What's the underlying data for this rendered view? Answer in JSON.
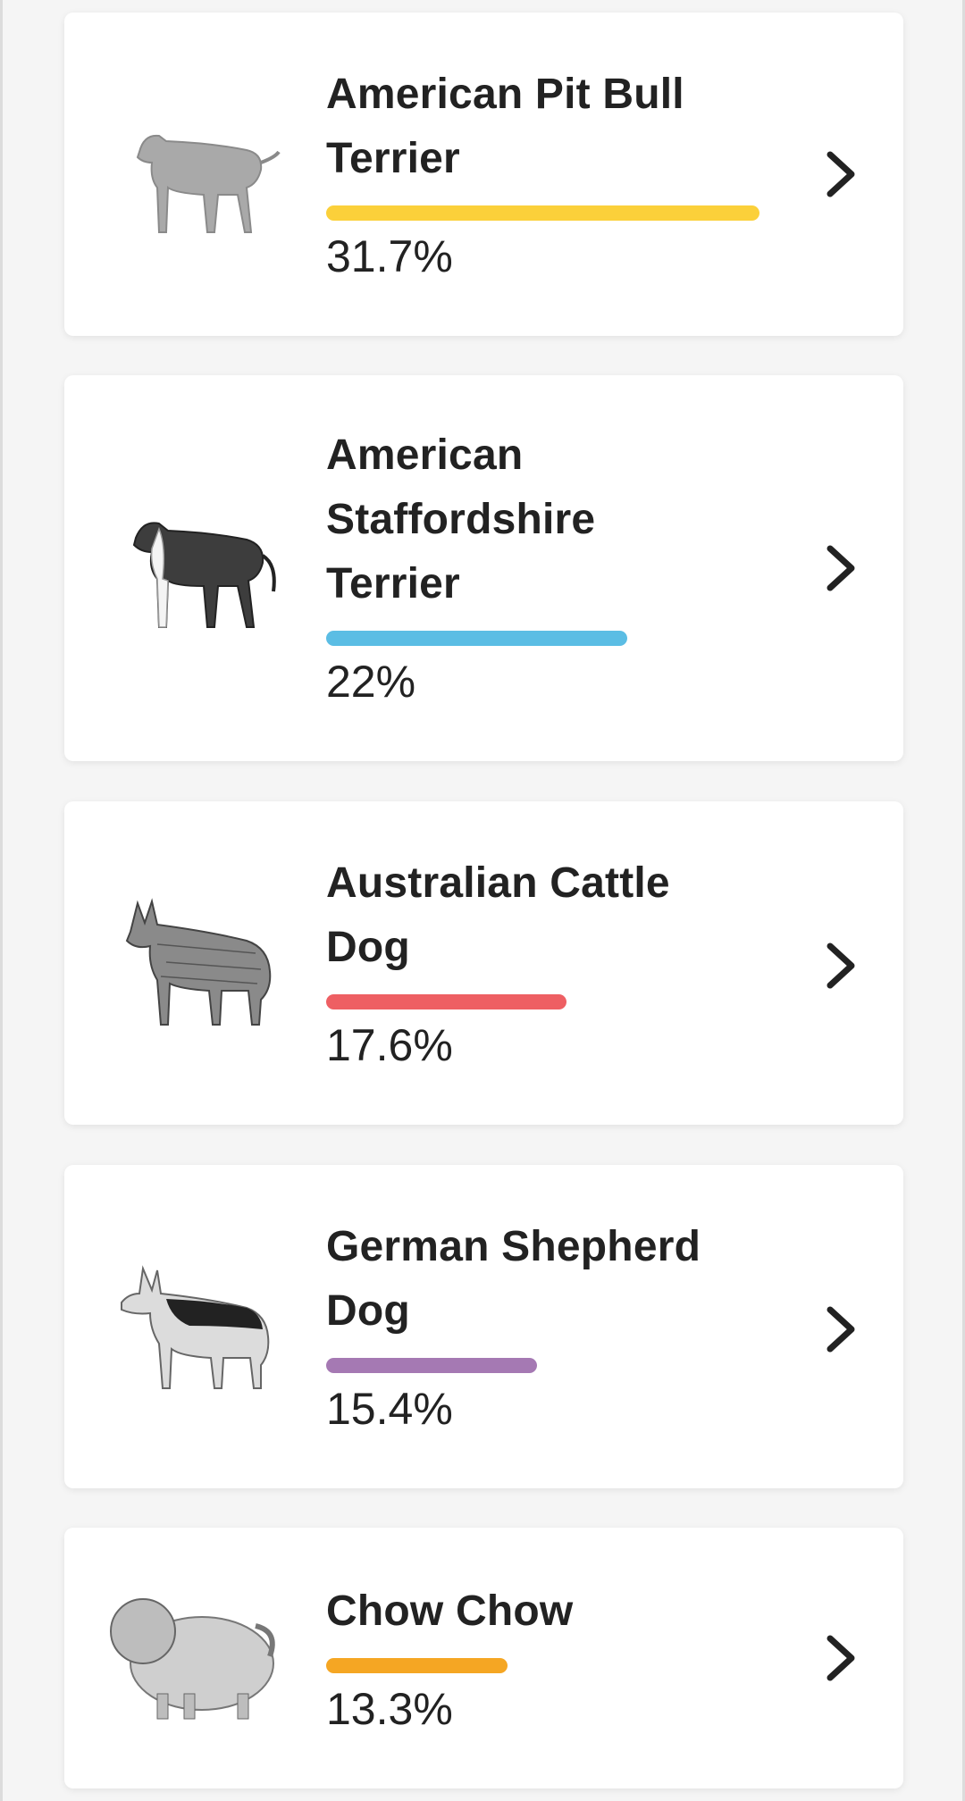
{
  "breeds": [
    {
      "name": "American Pit Bull Terrier",
      "lines": [
        "American Pit Bull",
        "Terrier"
      ],
      "percent_label": "31.7%",
      "percent": 31.7,
      "color": "#fbd03a",
      "icon": "pit-bull-dog-icon",
      "coat": "gray"
    },
    {
      "name": "American Staffordshire Terrier",
      "lines": [
        "American",
        "Staffordshire",
        "Terrier"
      ],
      "percent_label": "22%",
      "percent": 22,
      "color": "#5bbde4",
      "icon": "staffordshire-dog-icon",
      "coat": "black-white"
    },
    {
      "name": "Australian Cattle Dog",
      "lines": [
        "Australian Cattle",
        "Dog"
      ],
      "percent_label": "17.6%",
      "percent": 17.6,
      "color": "#ee5f63",
      "icon": "cattle-dog-icon",
      "coat": "sketch"
    },
    {
      "name": "German Shepherd Dog",
      "lines": [
        "German Shepherd",
        "Dog"
      ],
      "percent_label": "15.4%",
      "percent": 15.4,
      "color": "#a579b3",
      "icon": "german-shepherd-dog-icon",
      "coat": "saddle"
    },
    {
      "name": "Chow Chow",
      "lines": [
        "Chow Chow"
      ],
      "percent_label": "13.3%",
      "percent": 13.3,
      "color": "#f5a623",
      "icon": "chow-chow-dog-icon",
      "coat": "fluffy"
    }
  ],
  "chevron_icon": "chevron-right-icon"
}
